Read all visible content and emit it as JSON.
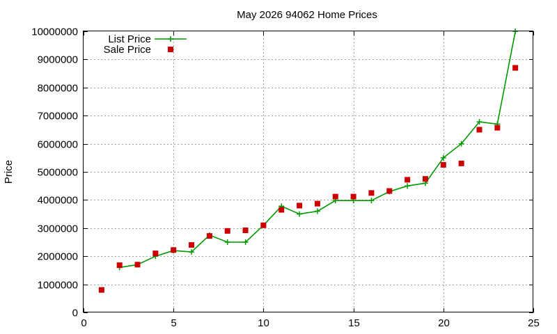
{
  "chart_data": {
    "type": "line",
    "title": "May 2026 94062 Home Prices",
    "xlabel": "",
    "ylabel": "Price",
    "xlim": [
      0,
      25
    ],
    "ylim": [
      0,
      10000000
    ],
    "x_ticks": [
      "0",
      "5",
      "10",
      "15",
      "20",
      "25"
    ],
    "y_ticks": [
      "0",
      "1000000",
      "2000000",
      "3000000",
      "4000000",
      "5000000",
      "6000000",
      "7000000",
      "8000000",
      "9000000",
      "10000000"
    ],
    "grid": true,
    "legend_position": "top-left",
    "x": [
      1,
      2,
      3,
      4,
      5,
      6,
      7,
      8,
      9,
      10,
      11,
      12,
      13,
      14,
      15,
      16,
      17,
      18,
      19,
      20,
      21,
      22,
      23,
      24
    ],
    "series": [
      {
        "name": "List Price",
        "style": "line+cross",
        "color": "#009900",
        "values": [
          null,
          1600000,
          1700000,
          2000000,
          2200000,
          2150000,
          2750000,
          2500000,
          2500000,
          3100000,
          3780000,
          3500000,
          3600000,
          3980000,
          3980000,
          3980000,
          4300000,
          4500000,
          4600000,
          5500000,
          6000000,
          6780000,
          6700000,
          10000000
        ]
      },
      {
        "name": "Sale Price",
        "style": "square",
        "color": "#cc0000",
        "values": [
          800000,
          1680000,
          1700000,
          2100000,
          2220000,
          2400000,
          2720000,
          2900000,
          2920000,
          3100000,
          3650000,
          3800000,
          3870000,
          4120000,
          4120000,
          4250000,
          4320000,
          4720000,
          4750000,
          5250000,
          5300000,
          6500000,
          6570000,
          8700000
        ]
      }
    ]
  }
}
